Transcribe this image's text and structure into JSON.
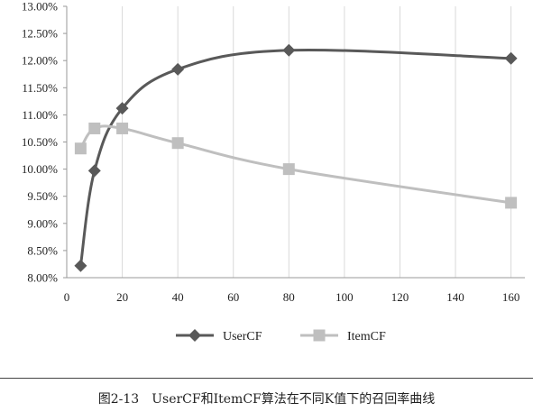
{
  "figure": {
    "caption": "图2-13　UserCF和ItemCF算法在不同K值下的召回率曲线"
  },
  "chart_data": {
    "type": "line",
    "title": "",
    "xlabel": "",
    "ylabel": "",
    "xlim": [
      0,
      165
    ],
    "ylim": [
      8.0,
      13.0
    ],
    "x_ticks": [
      0,
      20,
      40,
      60,
      80,
      100,
      120,
      140,
      160
    ],
    "y_ticks": [
      8.0,
      8.5,
      9.0,
      9.5,
      10.0,
      10.5,
      11.0,
      11.5,
      12.0,
      12.5,
      13.0
    ],
    "y_tick_labels": [
      "8.00%",
      "8.50%",
      "9.00%",
      "9.50%",
      "10.00%",
      "10.50%",
      "11.00%",
      "11.50%",
      "12.00%",
      "12.50%",
      "13.00%"
    ],
    "grid": "vertical",
    "legend": "bottom",
    "series": [
      {
        "name": "UserCF",
        "marker": "diamond",
        "color": "#595959",
        "x": [
          5,
          10,
          20,
          40,
          80,
          160
        ],
        "values": [
          8.22,
          9.97,
          11.12,
          11.84,
          12.19,
          12.04
        ]
      },
      {
        "name": "ItemCF",
        "marker": "square",
        "color": "#bfbfbf",
        "x": [
          5,
          10,
          20,
          40,
          80,
          160
        ],
        "values": [
          10.38,
          10.75,
          10.75,
          10.48,
          10.0,
          9.38
        ]
      }
    ]
  }
}
